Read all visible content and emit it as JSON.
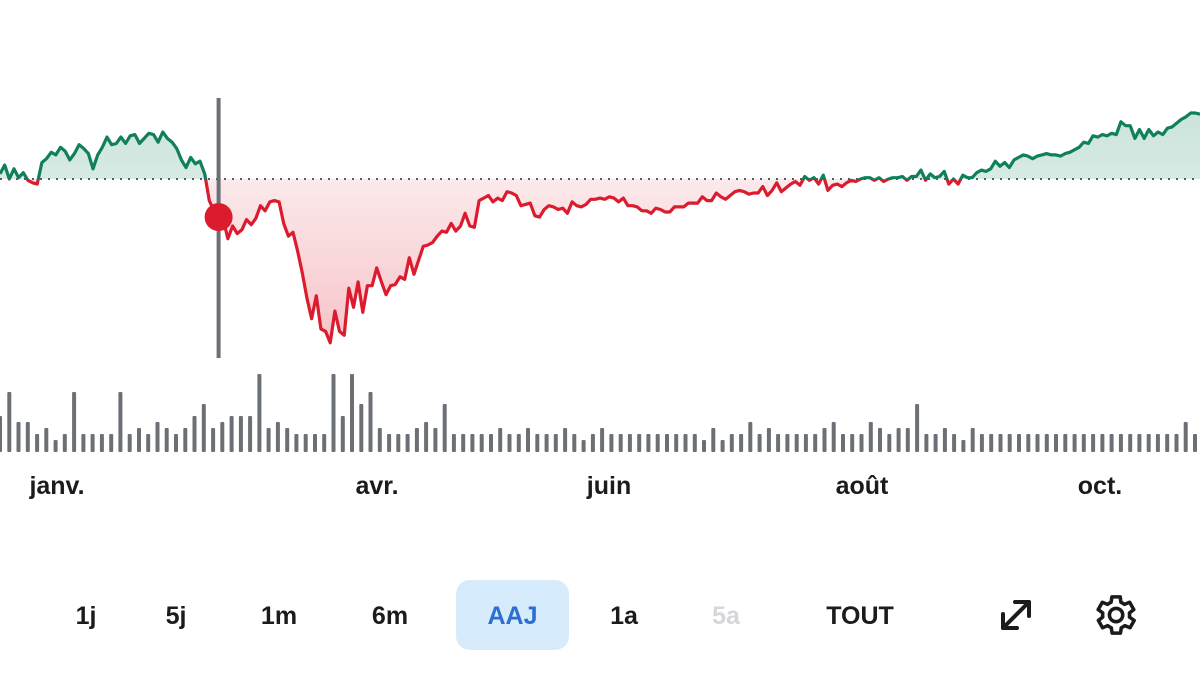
{
  "colors": {
    "positive": "#10805c",
    "negative": "#dc1b2e",
    "volume": "#6b6f76",
    "crosshair": "#6b6f76",
    "selected_bg": "#d6ebfb",
    "selected_text": "#2a6fd1",
    "disabled_text": "#d5d7db"
  },
  "chart_data": {
    "type": "line",
    "baseline_style": "dotted",
    "x_labels": [
      "janv.",
      "avr.",
      "juin",
      "août",
      "oct."
    ],
    "price_series_relative_to_baseline": [
      0.4,
      1.1,
      0.0,
      0.8,
      0.1,
      0.5,
      -0.1,
      -0.3,
      -0.4,
      1.3,
      1.6,
      2.1,
      1.9,
      2.5,
      2.2,
      1.5,
      2.0,
      2.7,
      2.4,
      2.0,
      0.8,
      1.9,
      2.5,
      3.3,
      2.7,
      2.8,
      3.3,
      2.8,
      3.4,
      3.5,
      2.8,
      3.2,
      3.6,
      3.5,
      2.9,
      3.7,
      3.2,
      2.9,
      2.4,
      1.5,
      0.9,
      1.7,
      1.2,
      1.4,
      0.4,
      -1.7,
      -2.5,
      -3.0,
      -3.2,
      -4.7,
      -3.7,
      -4.3,
      -4.0,
      -3.2,
      -3.6,
      -3.1,
      -2.1,
      -2.5,
      -1.8,
      -1.7,
      -1.8,
      -3.5,
      -4.5,
      -4.2,
      -5.7,
      -7.4,
      -9.4,
      -11.0,
      -9.2,
      -11.8,
      -12.0,
      -12.9,
      -10.4,
      -12.0,
      -12.3,
      -8.6,
      -10.1,
      -8.1,
      -10.5,
      -8.4,
      -8.4,
      -7.0,
      -8.1,
      -9.1,
      -8.4,
      -8.3,
      -7.7,
      -7.9,
      -6.2,
      -7.5,
      -6.4,
      -5.3,
      -5.2,
      -5.0,
      -4.5,
      -4.1,
      -4.2,
      -3.5,
      -4.1,
      -3.7,
      -2.7,
      -3.7,
      -3.8,
      -1.7,
      -1.5,
      -1.3,
      -1.8,
      -1.5,
      -1.7,
      -1.0,
      -1.1,
      -1.3,
      -2.1,
      -2.0,
      -1.9,
      -2.9,
      -3.0,
      -2.4,
      -2.1,
      -2.2,
      -2.4,
      -2.3,
      -2.7,
      -1.8,
      -2.1,
      -2.2,
      -2.0,
      -1.6,
      -1.6,
      -1.5,
      -1.6,
      -1.4,
      -1.5,
      -1.8,
      -1.5,
      -2.1,
      -2.1,
      -2.2,
      -2.5,
      -2.5,
      -2.7,
      -2.3,
      -2.4,
      -2.6,
      -2.6,
      -2.2,
      -2.2,
      -2.2,
      -1.9,
      -1.9,
      -1.9,
      -1.4,
      -1.7,
      -1.7,
      -1.1,
      -1.4,
      -1.6,
      -1.3,
      -1.0,
      -0.9,
      -1.0,
      -1.2,
      -1.1,
      -1.1,
      -0.6,
      -1.3,
      -0.9,
      -0.3,
      -1.0,
      -0.7,
      -0.4,
      -0.2,
      -0.5,
      0.2,
      -0.1,
      0.1,
      -0.4,
      0.3,
      -0.9,
      -0.5,
      -0.4,
      -0.6,
      -0.3,
      -0.1,
      -0.2,
      0.0,
      0.1,
      0.1,
      -0.1,
      0.1,
      -0.2,
      0.0,
      0.1,
      0.1,
      0.2,
      -0.1,
      0.2,
      0.2,
      0.7,
      -0.1,
      0.4,
      0.1,
      0.2,
      0.6,
      -0.4,
      0.0,
      -0.4,
      0.3,
      0.1,
      0.1,
      0.5,
      0.7,
      0.6,
      0.8,
      1.4,
      1.0,
      1.3,
      0.9,
      1.5,
      1.7,
      1.9,
      1.8,
      1.6,
      1.8,
      1.9,
      2.0,
      1.9,
      1.9,
      1.8,
      2.0,
      2.1,
      2.3,
      2.5,
      2.9,
      2.8,
      3.4,
      3.3,
      3.5,
      3.4,
      3.6,
      3.5,
      4.5,
      4.2,
      4.2,
      3.2,
      3.9,
      3.2,
      3.9,
      3.4,
      3.7,
      3.5,
      4.0,
      4.1,
      4.4,
      4.7,
      4.9,
      5.2,
      5.2,
      5.1
    ],
    "volume_relative": [
      0.6,
      1.0,
      0.5,
      0.5,
      0.3,
      0.4,
      0.2,
      0.3,
      1.0,
      0.3,
      0.3,
      0.3,
      0.3,
      1.0,
      0.3,
      0.4,
      0.3,
      0.5,
      0.4,
      0.3,
      0.4,
      0.6,
      0.8,
      0.4,
      0.5,
      0.6,
      0.6,
      0.6,
      1.3,
      0.4,
      0.5,
      0.4,
      0.3,
      0.3,
      0.3,
      0.3,
      1.3,
      0.6,
      1.3,
      0.8,
      1.0,
      0.4,
      0.3,
      0.3,
      0.3,
      0.4,
      0.5,
      0.4,
      0.8,
      0.3,
      0.3,
      0.3,
      0.3,
      0.3,
      0.4,
      0.3,
      0.3,
      0.4,
      0.3,
      0.3,
      0.3,
      0.4,
      0.3,
      0.2,
      0.3,
      0.4,
      0.3,
      0.3,
      0.3,
      0.3,
      0.3,
      0.3,
      0.3,
      0.3,
      0.3,
      0.3,
      0.2,
      0.4,
      0.2,
      0.3,
      0.3,
      0.5,
      0.3,
      0.4,
      0.3,
      0.3,
      0.3,
      0.3,
      0.3,
      0.4,
      0.5,
      0.3,
      0.3,
      0.3,
      0.5,
      0.4,
      0.3,
      0.4,
      0.4,
      0.8,
      0.3,
      0.3,
      0.4,
      0.3,
      0.2,
      0.4,
      0.3,
      0.3,
      0.3,
      0.3,
      0.3,
      0.3,
      0.3,
      0.3,
      0.3,
      0.3,
      0.3,
      0.3,
      0.3,
      0.3,
      0.3,
      0.3,
      0.3,
      0.3,
      0.3,
      0.3,
      0.3,
      0.3,
      0.5,
      0.3
    ]
  },
  "crosshair_index": 47,
  "range_buttons": [
    {
      "label": "1j",
      "state": "normal"
    },
    {
      "label": "5j",
      "state": "normal"
    },
    {
      "label": "1m",
      "state": "normal"
    },
    {
      "label": "6m",
      "state": "normal"
    },
    {
      "label": "AAJ",
      "state": "selected"
    },
    {
      "label": "1a",
      "state": "normal"
    },
    {
      "label": "5a",
      "state": "disabled"
    },
    {
      "label": "TOUT",
      "state": "normal"
    }
  ],
  "icons": {
    "expand": "expand-diagonal-arrows-icon",
    "settings": "gear-icon"
  }
}
